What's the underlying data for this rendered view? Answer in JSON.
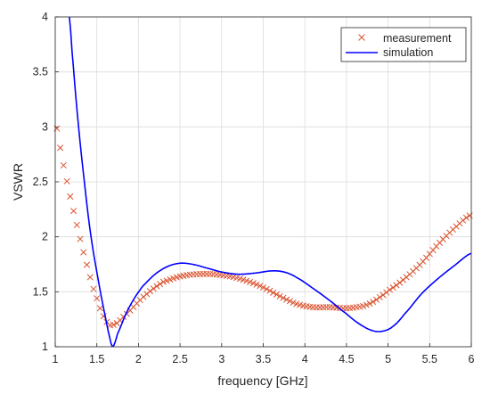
{
  "chart_data": {
    "type": "line",
    "title": "",
    "xlabel": "frequency [GHz]",
    "ylabel": "VSWR",
    "xlim": [
      1,
      6
    ],
    "ylim": [
      1,
      4
    ],
    "xticks": [
      1,
      1.5,
      2,
      2.5,
      3,
      3.5,
      4,
      4.5,
      5,
      5.5,
      6
    ],
    "xtick_labels": [
      "1",
      "1.5",
      "2",
      "2.5",
      "3",
      "3.5",
      "4",
      "4.5",
      "5",
      "5.5",
      "6"
    ],
    "yticks": [
      1,
      1.5,
      2,
      2.5,
      3,
      3.5,
      4
    ],
    "ytick_labels": [
      "1",
      "1.5",
      "2",
      "2.5",
      "3",
      "3.5",
      "4"
    ],
    "grid": true,
    "legend_position": "top-right",
    "series": [
      {
        "name": "measurement",
        "style": "markers",
        "marker": "x",
        "color": "#d9532f",
        "step": 0.04,
        "x_range": [
          1.02,
          6.0
        ],
        "anchors": [
          [
            1.0,
            3.05
          ],
          [
            1.05,
            2.85
          ],
          [
            1.1,
            2.65
          ],
          [
            1.15,
            2.47
          ],
          [
            1.2,
            2.3
          ],
          [
            1.25,
            2.14
          ],
          [
            1.3,
            1.98
          ],
          [
            1.35,
            1.83
          ],
          [
            1.4,
            1.69
          ],
          [
            1.45,
            1.55
          ],
          [
            1.5,
            1.44
          ],
          [
            1.55,
            1.33
          ],
          [
            1.6,
            1.25
          ],
          [
            1.65,
            1.2
          ],
          [
            1.7,
            1.2
          ],
          [
            1.75,
            1.22
          ],
          [
            1.8,
            1.26
          ],
          [
            1.9,
            1.33
          ],
          [
            2.0,
            1.41
          ],
          [
            2.1,
            1.48
          ],
          [
            2.2,
            1.54
          ],
          [
            2.3,
            1.59
          ],
          [
            2.5,
            1.64
          ],
          [
            2.7,
            1.66
          ],
          [
            2.9,
            1.66
          ],
          [
            3.1,
            1.64
          ],
          [
            3.3,
            1.6
          ],
          [
            3.5,
            1.54
          ],
          [
            3.7,
            1.46
          ],
          [
            3.9,
            1.39
          ],
          [
            4.1,
            1.36
          ],
          [
            4.3,
            1.36
          ],
          [
            4.5,
            1.35
          ],
          [
            4.7,
            1.37
          ],
          [
            4.8,
            1.4
          ],
          [
            4.9,
            1.45
          ],
          [
            5.0,
            1.51
          ],
          [
            5.2,
            1.62
          ],
          [
            5.4,
            1.76
          ],
          [
            5.6,
            1.93
          ],
          [
            5.8,
            2.08
          ],
          [
            6.0,
            2.2
          ]
        ]
      },
      {
        "name": "simulation",
        "style": "line",
        "color": "#0000ff",
        "points": [
          [
            1.17,
            4.0
          ],
          [
            1.2,
            3.7
          ],
          [
            1.25,
            3.25
          ],
          [
            1.3,
            2.85
          ],
          [
            1.35,
            2.5
          ],
          [
            1.4,
            2.17
          ],
          [
            1.45,
            1.9
          ],
          [
            1.5,
            1.68
          ],
          [
            1.55,
            1.47
          ],
          [
            1.6,
            1.28
          ],
          [
            1.65,
            1.1
          ],
          [
            1.69,
            1.0
          ],
          [
            1.75,
            1.12
          ],
          [
            1.85,
            1.3
          ],
          [
            1.95,
            1.44
          ],
          [
            2.05,
            1.55
          ],
          [
            2.2,
            1.66
          ],
          [
            2.35,
            1.73
          ],
          [
            2.5,
            1.76
          ],
          [
            2.65,
            1.75
          ],
          [
            2.8,
            1.72
          ],
          [
            3.0,
            1.68
          ],
          [
            3.2,
            1.66
          ],
          [
            3.4,
            1.67
          ],
          [
            3.6,
            1.69
          ],
          [
            3.75,
            1.68
          ],
          [
            3.9,
            1.63
          ],
          [
            4.1,
            1.53
          ],
          [
            4.3,
            1.42
          ],
          [
            4.5,
            1.3
          ],
          [
            4.65,
            1.21
          ],
          [
            4.8,
            1.15
          ],
          [
            4.92,
            1.14
          ],
          [
            5.05,
            1.18
          ],
          [
            5.2,
            1.3
          ],
          [
            5.4,
            1.48
          ],
          [
            5.6,
            1.62
          ],
          [
            5.8,
            1.74
          ],
          [
            6.0,
            1.85
          ]
        ]
      }
    ]
  }
}
